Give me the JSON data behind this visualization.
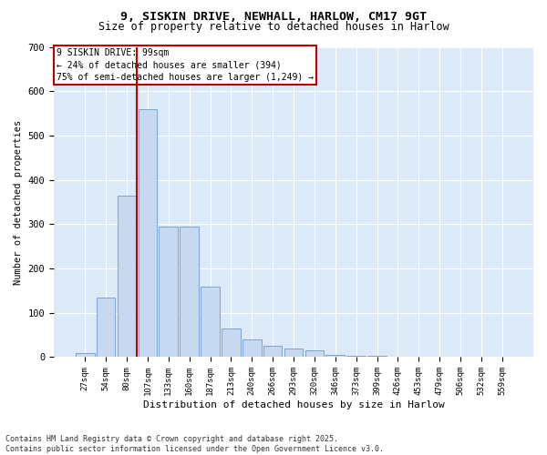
{
  "title_line1": "9, SISKIN DRIVE, NEWHALL, HARLOW, CM17 9GT",
  "title_line2": "Size of property relative to detached houses in Harlow",
  "xlabel": "Distribution of detached houses by size in Harlow",
  "ylabel": "Number of detached properties",
  "bar_labels": [
    "27sqm",
    "54sqm",
    "80sqm",
    "107sqm",
    "133sqm",
    "160sqm",
    "187sqm",
    "213sqm",
    "240sqm",
    "266sqm",
    "293sqm",
    "320sqm",
    "346sqm",
    "373sqm",
    "399sqm",
    "426sqm",
    "453sqm",
    "479sqm",
    "506sqm",
    "532sqm",
    "559sqm"
  ],
  "bar_values": [
    10,
    135,
    365,
    560,
    295,
    295,
    160,
    65,
    40,
    25,
    20,
    15,
    5,
    3,
    2,
    1,
    0,
    0,
    0,
    0,
    0
  ],
  "bar_color": "#c6d9f0",
  "bar_edge_color": "#5a8ac6",
  "vline_color": "#c00000",
  "annotation_text": "9 SISKIN DRIVE: 99sqm\n← 24% of detached houses are smaller (394)\n75% of semi-detached houses are larger (1,249) →",
  "annotation_box_color": "#ffffff",
  "annotation_box_edge": "#c00000",
  "ylim": [
    0,
    700
  ],
  "yticks": [
    0,
    100,
    200,
    300,
    400,
    500,
    600,
    700
  ],
  "background_color": "#dce9f8",
  "footer_line1": "Contains HM Land Registry data © Crown copyright and database right 2025.",
  "footer_line2": "Contains public sector information licensed under the Open Government Licence v3.0."
}
